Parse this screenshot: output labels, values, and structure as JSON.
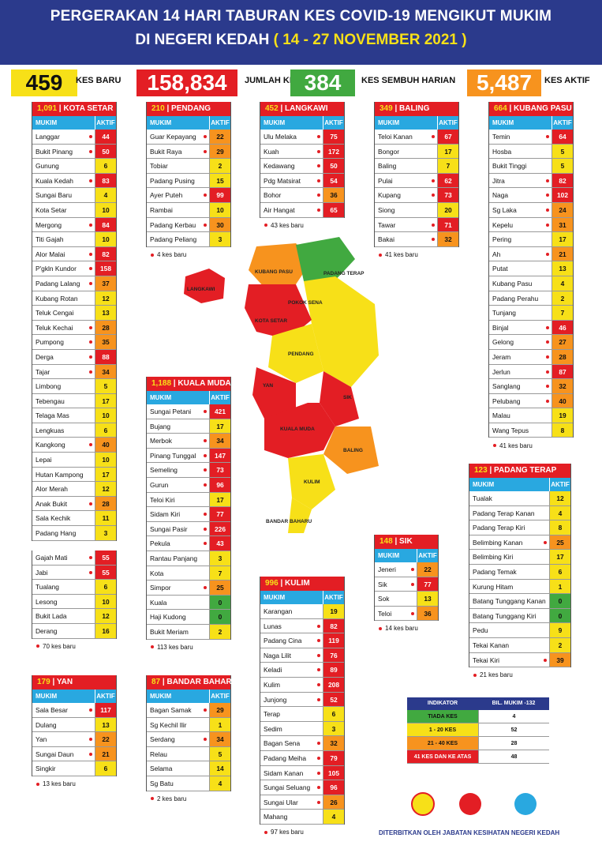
{
  "header": {
    "line1": "PERGERAKAN 14 HARI TABURAN KES COVID-19 MENGIKUT MUKIM",
    "line2a": "DI NEGERI KEDAH ",
    "line2b": "( 14 - 27 NOVEMBER 2021 )"
  },
  "stats": [
    {
      "value": "459",
      "label": "KES BARU",
      "color": "#f7e018",
      "text": "#111"
    },
    {
      "value": "158,834",
      "label": "JUMLAH KES",
      "color": "#e31e24",
      "text": "#fff"
    },
    {
      "value": "384",
      "label": "KES SEMBUH HARIAN",
      "color": "#41a940",
      "text": "#fff"
    },
    {
      "value": "5,487",
      "label": "KES AKTIF",
      "color": "#f7931e",
      "text": "#fff"
    }
  ],
  "col_headers": {
    "mukim": "MUKIM",
    "aktif": "AKTIF"
  },
  "colors": {
    "red": "#e31e24",
    "orange": "#f7931e",
    "yellow": "#f7e018",
    "green": "#41a940"
  },
  "districts": {
    "kota_setar": {
      "num": "1,091",
      "name": " | KOTA SETAR",
      "rows": [
        [
          "Langgar",
          "44"
        ],
        [
          "Bukit Pinang",
          "50"
        ],
        [
          "Gunung",
          "6"
        ],
        [
          "Kuala Kedah",
          "83"
        ],
        [
          "Sungai Baru",
          "4"
        ],
        [
          "Kota Setar",
          "10"
        ],
        [
          "Mergong",
          "84"
        ],
        [
          "Titi Gajah",
          "10"
        ],
        [
          "Alor Malai",
          "82"
        ],
        [
          "P'gkln Kundor",
          "158"
        ],
        [
          "Padang Lalang",
          "37"
        ],
        [
          "Kubang Rotan",
          "12"
        ],
        [
          "Teluk Cengai",
          "13"
        ],
        [
          "Teluk Kechai",
          "28"
        ],
        [
          "Pumpong",
          "35"
        ],
        [
          "Derga",
          "88"
        ],
        [
          "Tajar",
          "34"
        ],
        [
          "Limbong",
          "5"
        ],
        [
          "Tebengau",
          "17"
        ],
        [
          "Telaga Mas",
          "10"
        ],
        [
          "Lengkuas",
          "6"
        ],
        [
          "Kangkong",
          "40"
        ],
        [
          "Lepai",
          "10"
        ],
        [
          "Hutan Kampong",
          "17"
        ],
        [
          "Alor Merah",
          "12"
        ],
        [
          "Anak Bukit",
          "28"
        ],
        [
          "Sala Kechik",
          "11"
        ],
        [
          "Padang Hang",
          "3"
        ]
      ]
    },
    "kota_setar2": {
      "rows": [
        [
          "Gajah Mati",
          "55"
        ],
        [
          "Jabi",
          "55"
        ],
        [
          "Tualang",
          "6"
        ],
        [
          "Lesong",
          "10"
        ],
        [
          "Bukit Lada",
          "12"
        ],
        [
          "Derang",
          "16"
        ]
      ],
      "foot": "70 kes baru"
    },
    "pendang": {
      "num": "210",
      "name": " | PENDANG",
      "rows": [
        [
          "Guar Kepayang",
          "22"
        ],
        [
          "Bukit Raya",
          "29"
        ],
        [
          "Tobiar",
          "2"
        ],
        [
          "Padang Pusing",
          "15"
        ],
        [
          "Ayer Puteh",
          "99"
        ],
        [
          "Rambai",
          "10"
        ],
        [
          "Padang Kerbau",
          "30"
        ],
        [
          "Padang Peliang",
          "3"
        ]
      ],
      "foot": "4 kes baru"
    },
    "langkawi": {
      "num": "452",
      "name": " | LANGKAWI",
      "rows": [
        [
          "Ulu Melaka",
          "75"
        ],
        [
          "Kuah",
          "172"
        ],
        [
          "Kedawang",
          "50"
        ],
        [
          "Pdg Matsirat",
          "54"
        ],
        [
          "Bohor",
          "36"
        ],
        [
          "Air Hangat",
          "65"
        ]
      ],
      "foot": "43 kes baru"
    },
    "baling": {
      "num": "349",
      "name": " | BALING",
      "rows": [
        [
          "Teloi Kanan",
          "67"
        ],
        [
          "Bongor",
          "17"
        ],
        [
          "Baling",
          "7"
        ],
        [
          "Pulai",
          "62"
        ],
        [
          "Kupang",
          "73"
        ],
        [
          "Siong",
          "20"
        ],
        [
          "Tawar",
          "71"
        ],
        [
          "Bakai",
          "32"
        ]
      ],
      "foot": "41 kes baru"
    },
    "kubang_pasu": {
      "num": "664",
      "name": " | KUBANG PASU",
      "rows": [
        [
          "Temin",
          "64"
        ],
        [
          "Hosba",
          "5"
        ],
        [
          "Bukit Tinggi",
          "5"
        ],
        [
          "Jitra",
          "82"
        ],
        [
          "Naga",
          "102"
        ],
        [
          "Sg Laka",
          "24"
        ],
        [
          "Kepelu",
          "31"
        ],
        [
          "Pering",
          "17"
        ],
        [
          "Ah",
          "21"
        ],
        [
          "Putat",
          "13"
        ],
        [
          "Kubang Pasu",
          "4"
        ],
        [
          "Padang Perahu",
          "2"
        ],
        [
          "Tunjang",
          "7"
        ],
        [
          "Binjal",
          "46"
        ],
        [
          "Gelong",
          "27"
        ],
        [
          "Jeram",
          "28"
        ],
        [
          "Jerlun",
          "87"
        ],
        [
          "Sanglang",
          "32"
        ],
        [
          "Pelubang",
          "40"
        ],
        [
          "Malau",
          "19"
        ],
        [
          "Wang Tepus",
          "8"
        ]
      ],
      "foot": "41 kes baru"
    },
    "kuala_muda": {
      "num": "1,188",
      "name": " | KUALA MUDA",
      "rows": [
        [
          "Sungai Petani",
          "421"
        ],
        [
          "Bujang",
          "17"
        ],
        [
          "Merbok",
          "34"
        ],
        [
          "Pinang Tunggal",
          "147"
        ],
        [
          "Semeling",
          "73"
        ],
        [
          "Gurun",
          "96"
        ],
        [
          "Teloi Kiri",
          "17"
        ],
        [
          "Sidam Kiri",
          "77"
        ],
        [
          "Sungai Pasir",
          "226"
        ],
        [
          "Pekula",
          "43"
        ],
        [
          "Rantau Panjang",
          "3"
        ],
        [
          "Kota",
          "7"
        ],
        [
          "Simpor",
          "25"
        ],
        [
          "Kuala",
          "0"
        ],
        [
          "Haji Kudong",
          "0"
        ],
        [
          "Bukit Meriam",
          "2"
        ]
      ],
      "foot": "113 kes baru"
    },
    "padang_terap": {
      "num": "123",
      "name": " | PADANG TERAP",
      "rows": [
        [
          "Tualak",
          "12"
        ],
        [
          "Padang Terap Kanan",
          "4"
        ],
        [
          "Padang Terap Kiri",
          "8"
        ],
        [
          "Belimbing Kanan",
          "25"
        ],
        [
          "Belimbing Kiri",
          "17"
        ],
        [
          "Padang Temak",
          "6"
        ],
        [
          "Kurung Hitam",
          "1"
        ],
        [
          "Batang Tunggang Kanan",
          "0"
        ],
        [
          "Batang Tunggang Kiri",
          "0"
        ],
        [
          "Pedu",
          "9"
        ],
        [
          "Tekai Kanan",
          "2"
        ],
        [
          "Tekai Kiri",
          "39"
        ]
      ],
      "foot": "21 kes baru"
    },
    "sik": {
      "num": "148",
      "name": " | SIK",
      "rows": [
        [
          "Jeneri",
          "22"
        ],
        [
          "Sik",
          "77"
        ],
        [
          "Sok",
          "13"
        ],
        [
          "Teloi",
          "36"
        ]
      ],
      "foot": "14 kes baru"
    },
    "kulim": {
      "num": "996",
      "name": " | KULIM",
      "rows": [
        [
          "Karangan",
          "19"
        ],
        [
          "Lunas",
          "82"
        ],
        [
          "Padang Cina",
          "119"
        ],
        [
          "Naga Lilit",
          "76"
        ],
        [
          "Keladi",
          "89"
        ],
        [
          "Kulim",
          "208"
        ],
        [
          "Junjong",
          "52"
        ],
        [
          "Terap",
          "6"
        ],
        [
          "Sedim",
          "3"
        ],
        [
          "Bagan Sena",
          "32"
        ],
        [
          "Padang Meiha",
          "79"
        ],
        [
          "Sidam Kanan",
          "105"
        ],
        [
          "Sungai Seluang",
          "96"
        ],
        [
          "Sungai Ular",
          "26"
        ],
        [
          "Mahang",
          "4"
        ]
      ],
      "foot": "97 kes baru"
    },
    "yan": {
      "num": "179",
      "name": " | YAN",
      "rows": [
        [
          "Sala Besar",
          "117"
        ],
        [
          "Dulang",
          "13"
        ],
        [
          "Yan",
          "22"
        ],
        [
          "Sungai Daun",
          "21"
        ],
        [
          "Singkir",
          "6"
        ]
      ],
      "foot": "13 kes baru"
    },
    "bandar_baharu": {
      "num": "87",
      "name": " | BANDAR BAHARU",
      "rows": [
        [
          "Bagan Samak",
          "29"
        ],
        [
          "Sg Kechil Ilir",
          "1"
        ],
        [
          "Serdang",
          "34"
        ],
        [
          "Relau",
          "5"
        ],
        [
          "Selama",
          "14"
        ],
        [
          "Sg Batu",
          "4"
        ]
      ],
      "foot": "2 kes baru"
    }
  },
  "map_labels": [
    "LANGKAWI",
    "KUBANG PASU",
    "PADANG TERAP",
    "POKOK SENA",
    "KOTA SETAR",
    "PENDANG",
    "YAN",
    "SIK",
    "KUALA MUDA",
    "BALING",
    "KULIM",
    "BANDAR BAHARU"
  ],
  "legend": {
    "h1": "INDIKATOR",
    "h2": "BIL. MUKIM -132",
    "rows": [
      [
        "TIADA KES",
        "4"
      ],
      [
        "1 - 20 KES",
        "52"
      ],
      [
        "21 - 40 KES",
        "28"
      ],
      [
        "41 KES DAN KE ATAS",
        "48"
      ]
    ]
  },
  "publisher": "DITERBITKAN OLEH JABATAN KESIHATAN NEGERI KEDAH"
}
